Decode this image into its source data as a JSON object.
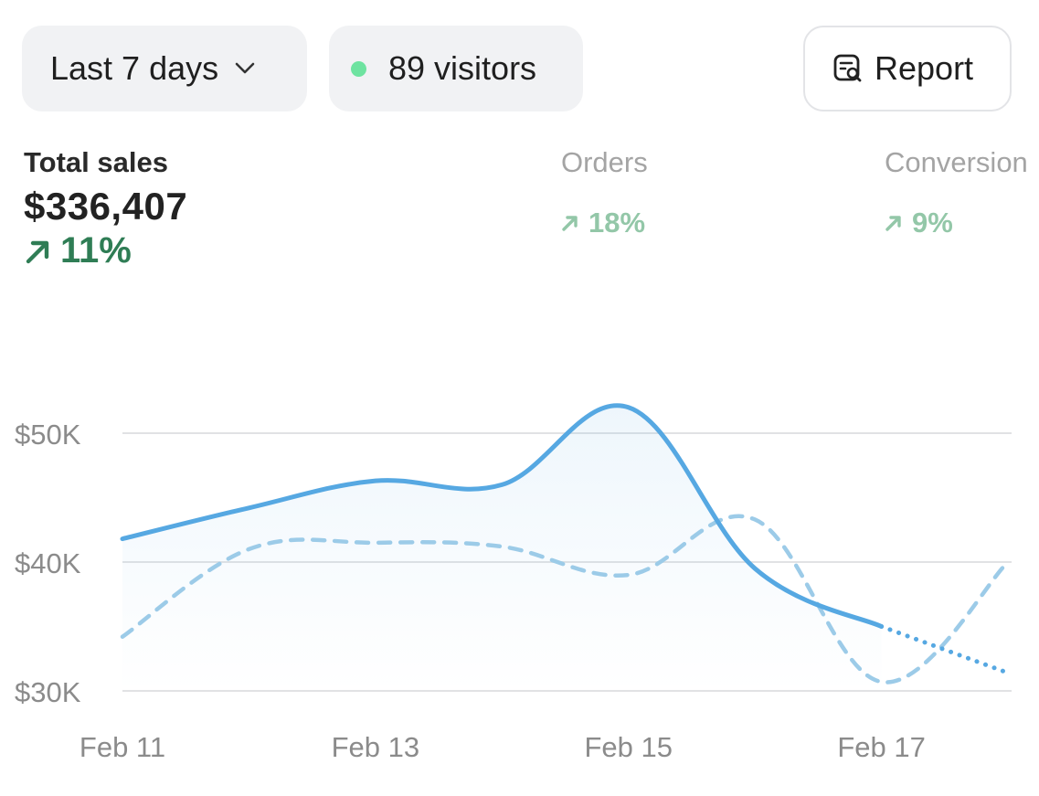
{
  "filters": {
    "date_range": "Last 7 days",
    "visitors": "89 visitors",
    "report_label": "Report"
  },
  "metrics": [
    {
      "label": "Total sales",
      "value": "$336,407",
      "change": "11%"
    },
    {
      "label": "Orders",
      "value": "",
      "change": "18%"
    },
    {
      "label": "Conversion",
      "value": "",
      "change": "9%"
    }
  ],
  "colors": {
    "accent_line": "#56a8e2",
    "comparison_line": "#9ccbe8",
    "positive": "#2f7d55",
    "visitor_dot": "#6ee3a0"
  },
  "chart_data": {
    "type": "line",
    "x": [
      "Feb 11",
      "Feb 12",
      "Feb 13",
      "Feb 14",
      "Feb 15",
      "Feb 16",
      "Feb 17",
      "Feb 18"
    ],
    "x_tick_labels": [
      "Feb 11",
      "Feb 13",
      "Feb 15",
      "Feb 17"
    ],
    "y_tick_labels": [
      "$50K",
      "$40K",
      "$30K"
    ],
    "y_ticks": [
      50000,
      40000,
      30000
    ],
    "ylim": [
      30000,
      50000
    ],
    "grid": true,
    "series": [
      {
        "style": "solid",
        "values": [
          41800,
          44200,
          46300,
          46000,
          52000,
          39500,
          35000,
          null
        ],
        "projected_values": [
          null,
          null,
          null,
          null,
          null,
          null,
          35000,
          31400
        ]
      },
      {
        "style": "dashed",
        "values": [
          34200,
          41000,
          41500,
          41200,
          39000,
          43300,
          30700,
          40000
        ]
      }
    ]
  }
}
